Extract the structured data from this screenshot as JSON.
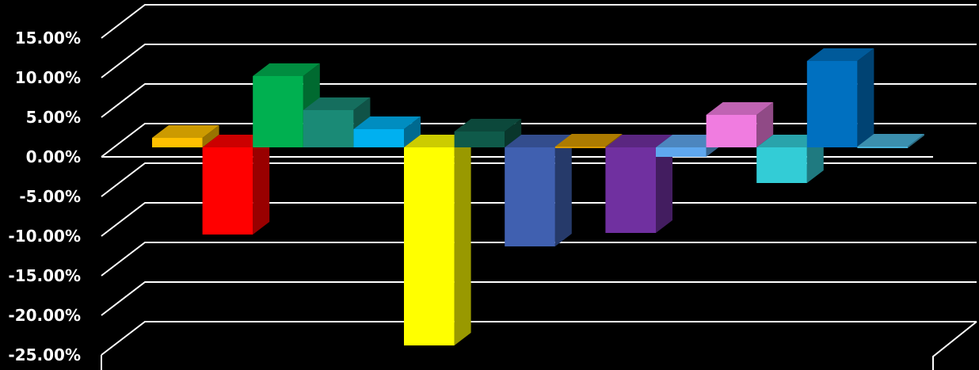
{
  "chart_data": {
    "type": "bar",
    "style": "3d-clustered-column",
    "title": "",
    "xlabel": "",
    "ylabel": "",
    "ylim": [
      -25,
      15
    ],
    "y_ticks": [
      15,
      10,
      5,
      0,
      -5,
      -10,
      -15,
      -20,
      -25
    ],
    "y_tick_labels": [
      "15.00%",
      "10.00%",
      "5.00%",
      "0.00%",
      "-5.00%",
      "-10.00%",
      "-15.00%",
      "-20.00%",
      "-25.00%"
    ],
    "grid": true,
    "legend": "none",
    "background_color": "#000000",
    "grid_color": "#ffffff",
    "text_color": "#ffffff",
    "series": [
      {
        "values": [
          1.2
        ],
        "color": "#ffc000"
      },
      {
        "values": [
          -11.0
        ],
        "color": "#ff0000"
      },
      {
        "values": [
          9.0
        ],
        "color": "#00b050"
      },
      {
        "values": [
          4.7
        ],
        "color": "#1a8a76"
      },
      {
        "values": [
          2.3
        ],
        "color": "#00b0f0"
      },
      {
        "values": [
          -25.0
        ],
        "color": "#ffff00"
      },
      {
        "values": [
          2.0
        ],
        "color": "#0f5a4a"
      },
      {
        "values": [
          -12.5
        ],
        "color": "#4060b0"
      },
      {
        "values": [
          0.0
        ],
        "color": "#d89a00"
      },
      {
        "values": [
          -10.8
        ],
        "color": "#7030a0"
      },
      {
        "values": [
          -1.2
        ],
        "color": "#5fa8ef"
      },
      {
        "values": [
          4.1
        ],
        "color": "#f07ce0"
      },
      {
        "values": [
          -4.5
        ],
        "color": "#33ccd6"
      },
      {
        "values": [
          10.9
        ],
        "color": "#0070c0"
      },
      {
        "values": [
          0.0
        ],
        "color": "#4ab3d9"
      }
    ]
  }
}
